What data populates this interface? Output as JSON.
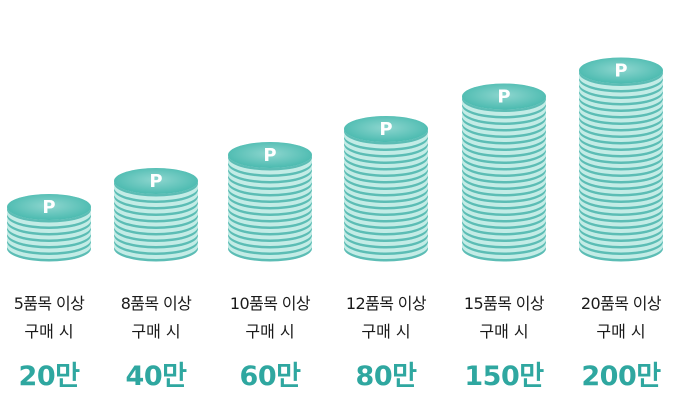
{
  "tiers": [
    {
      "condition": "5품목 이상",
      "purchase": "구매 시",
      "reward": "20만",
      "coin_label": "P",
      "coin_count": 7
    },
    {
      "condition": "8품목 이상",
      "purchase": "구매 시",
      "reward": "40만",
      "coin_label": "P",
      "coin_count": 11
    },
    {
      "condition": "10품목 이상",
      "purchase": "구매 시",
      "reward": "60만",
      "coin_label": "P",
      "coin_count": 15
    },
    {
      "condition": "12품목 이상",
      "purchase": "구매 시",
      "reward": "80만",
      "coin_label": "P",
      "coin_count": 19
    },
    {
      "condition": "15품목 이상",
      "purchase": "구매 시",
      "reward": "150만",
      "coin_label": "P",
      "coin_count": 24
    },
    {
      "condition": "20품목 이상",
      "purchase": "구매 시",
      "reward": "200만",
      "coin_label": "P",
      "coin_count": 28
    }
  ],
  "colors": {
    "coin_top": "#45b8ad",
    "coin_top_light": "#8ed6cf",
    "coin_rim": "#c3ece6",
    "coin_band": "#5cbdb5",
    "reward_text": "#2fa7a0"
  }
}
